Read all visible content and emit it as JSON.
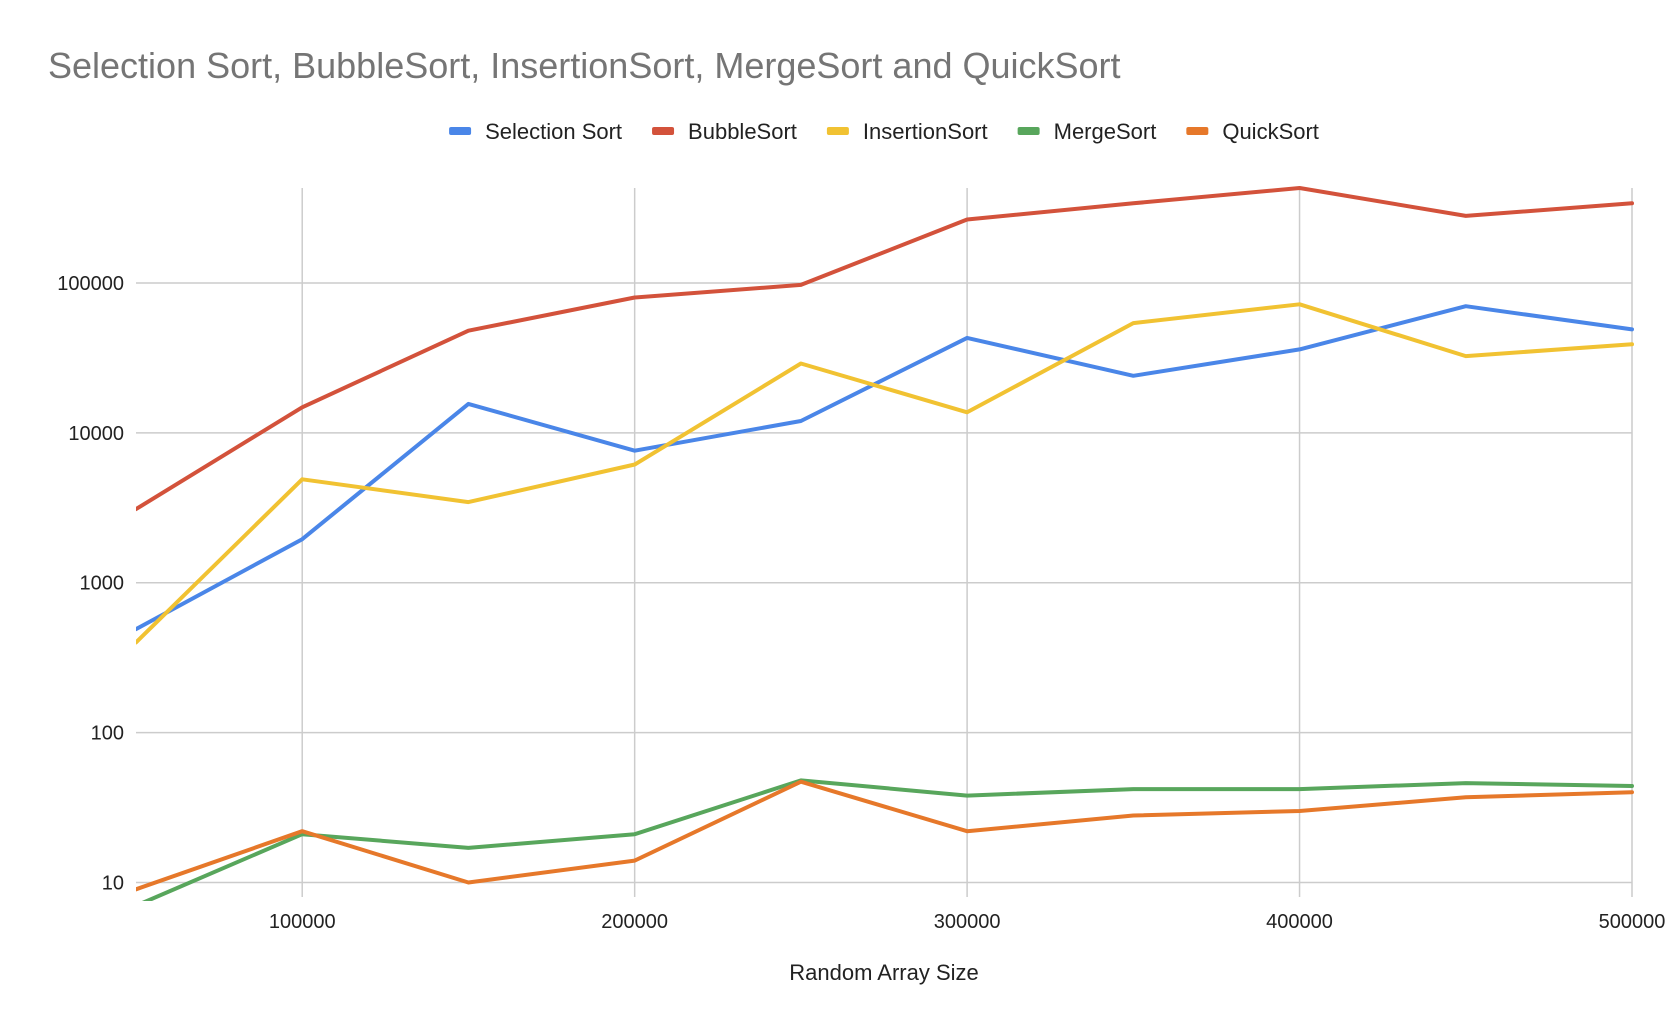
{
  "chart_data": {
    "type": "line",
    "title": "Selection Sort, BubbleSort, InsertionSort, MergeSort and QuickSort",
    "xlabel": "Random Array Size",
    "ylabel": "",
    "y_scale": "log",
    "ylim": [
      8,
      430000
    ],
    "xlim": [
      50000,
      500000
    ],
    "x_ticks": [
      "100000",
      "200000",
      "300000",
      "400000",
      "500000"
    ],
    "y_ticks": [
      "10",
      "100",
      "1000",
      "10000",
      "100000"
    ],
    "grid": true,
    "legend_position": "top",
    "x": [
      50000,
      100000,
      150000,
      200000,
      250000,
      300000,
      350000,
      400000,
      450000,
      500000
    ],
    "series": [
      {
        "name": "Selection Sort",
        "color": "#4a86e8",
        "values": [
          490,
          1950,
          15600,
          7600,
          12000,
          43000,
          24000,
          36000,
          70000,
          49000
        ]
      },
      {
        "name": "BubbleSort",
        "color": "#d3523b",
        "values": [
          3100,
          14800,
          48000,
          80000,
          97000,
          265000,
          340000,
          430000,
          280000,
          340000
        ]
      },
      {
        "name": "InsertionSort",
        "color": "#f1c232",
        "values": [
          400,
          4900,
          3450,
          6150,
          29000,
          13700,
          54000,
          72000,
          32500,
          39000
        ]
      },
      {
        "name": "MergeSort",
        "color": "#58a65c",
        "values": [
          7,
          21,
          17,
          21,
          48,
          38,
          42,
          42,
          46,
          44
        ]
      },
      {
        "name": "QuickSort",
        "color": "#e6782a",
        "values": [
          9,
          22,
          10,
          14,
          47,
          22,
          28,
          30,
          37,
          40
        ]
      }
    ]
  }
}
